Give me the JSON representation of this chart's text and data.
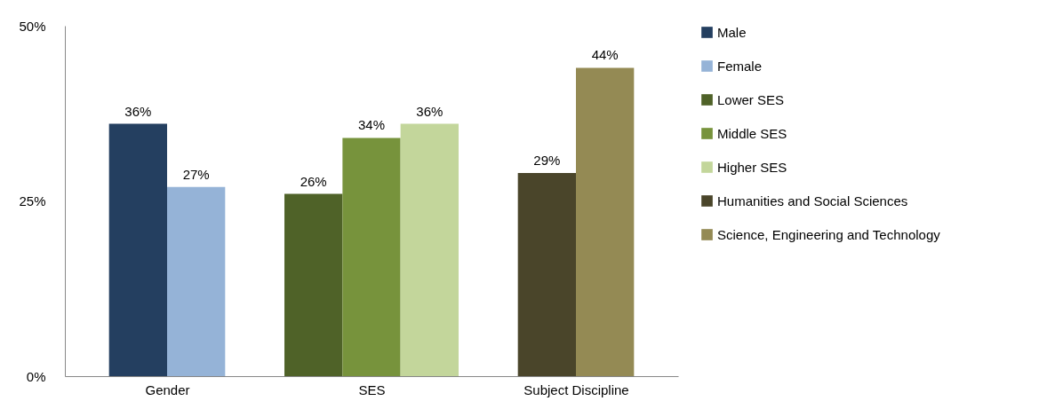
{
  "chart_data": {
    "type": "bar",
    "categories": [
      "Gender",
      "SES",
      "Subject Discipline"
    ],
    "series": [
      {
        "name": "Male",
        "color": "#243f60",
        "values": [
          36,
          null,
          null
        ],
        "value_labels": [
          "36%",
          null,
          null
        ]
      },
      {
        "name": "Female",
        "color": "#95b3d7",
        "values": [
          27,
          null,
          null
        ],
        "value_labels": [
          "27%",
          null,
          null
        ]
      },
      {
        "name": "Lower SES",
        "color": "#4f6228",
        "values": [
          null,
          26,
          null
        ],
        "value_labels": [
          null,
          "26%",
          null
        ]
      },
      {
        "name": "Middle SES",
        "color": "#77933c",
        "values": [
          null,
          34,
          null
        ],
        "value_labels": [
          null,
          "34%",
          null
        ]
      },
      {
        "name": "Higher SES",
        "color": "#c3d69b",
        "values": [
          null,
          36,
          null
        ],
        "value_labels": [
          null,
          "36%",
          null
        ]
      },
      {
        "name": "Humanities and Social Sciences",
        "color": "#4a452a",
        "values": [
          null,
          null,
          29
        ],
        "value_labels": [
          null,
          null,
          "29%"
        ]
      },
      {
        "name": "Science, Engineering and Technology",
        "color": "#948a54",
        "values": [
          null,
          null,
          44
        ],
        "value_labels": [
          null,
          null,
          "44%"
        ]
      }
    ],
    "ylim": [
      0,
      50
    ],
    "yticks": [
      {
        "value": 0,
        "label": "0%"
      },
      {
        "value": 25,
        "label": "25%"
      },
      {
        "value": 50,
        "label": "50%"
      }
    ],
    "grid": false,
    "legend": "right"
  }
}
